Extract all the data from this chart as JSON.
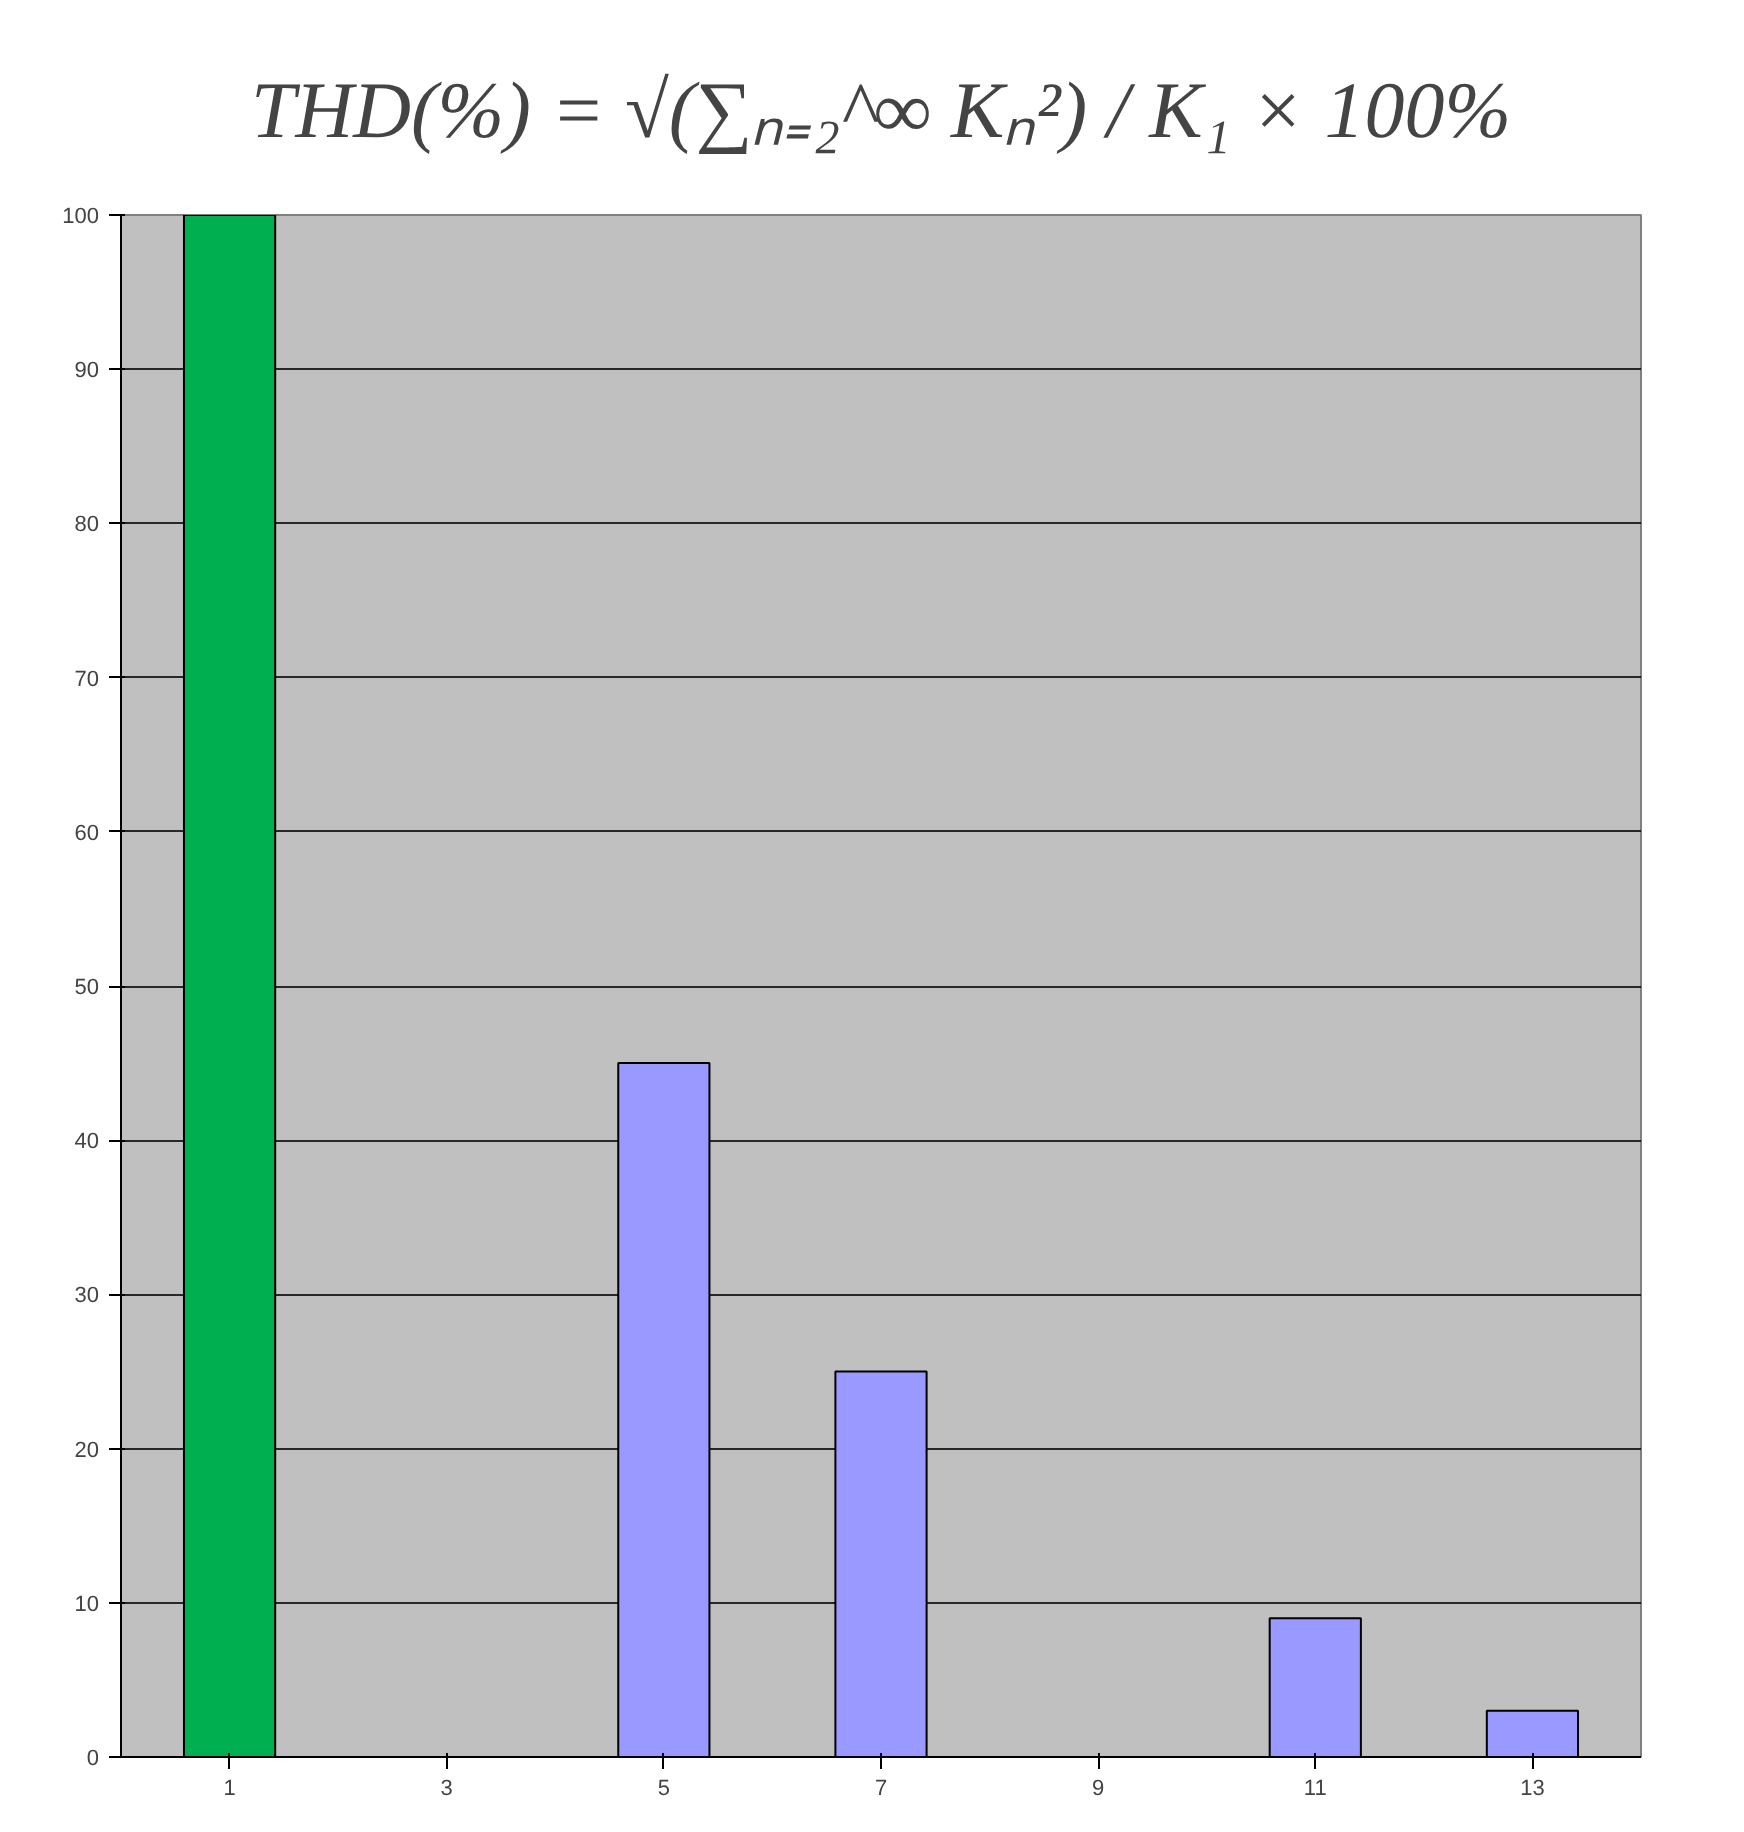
{
  "chart_data": {
    "type": "bar",
    "categories": [
      "1",
      "3",
      "5",
      "7",
      "9",
      "11",
      "13"
    ],
    "values": [
      100,
      null,
      45,
      25,
      null,
      9,
      3
    ],
    "colors": [
      "#00b050",
      "#9999ff",
      "#9999ff",
      "#9999ff",
      "#9999ff",
      "#9999ff",
      "#9999ff"
    ],
    "ylim": [
      0,
      100
    ],
    "yticks": [
      0,
      10,
      20,
      30,
      40,
      50,
      60,
      70,
      80,
      90,
      100
    ],
    "grid": "y",
    "annotations": [
      "THD(%) = √(∑ₙ₌₂^∞ Kₙ²) / K₁ × 100%"
    ]
  }
}
